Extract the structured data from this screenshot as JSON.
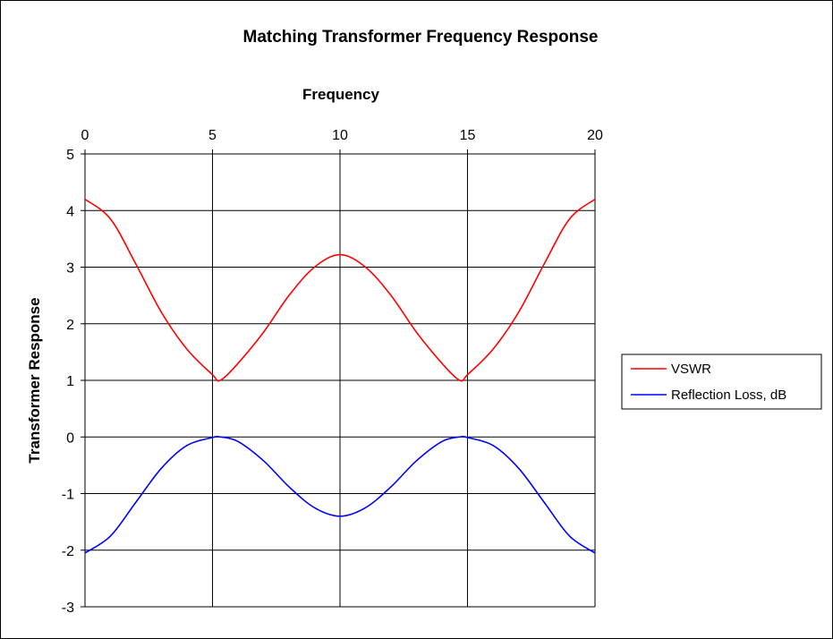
{
  "chart_data": {
    "type": "line",
    "title": "Matching Transformer Frequency Response",
    "xlabel": "Frequency",
    "ylabel": "Transformer  Response",
    "xlim": [
      0,
      20
    ],
    "ylim": [
      -3,
      5
    ],
    "x_ticks": [
      "0",
      "5",
      "10",
      "15",
      "20"
    ],
    "y_ticks": [
      "5",
      "4",
      "3",
      "2",
      "1",
      "0",
      "-1",
      "-2",
      "-3"
    ],
    "x_axis_position": "top",
    "grid": true,
    "legend_position": "right",
    "series": [
      {
        "name": "VSWR",
        "color": "#ff0000",
        "x": [
          0,
          1,
          2,
          3,
          4,
          5,
          5.3,
          6,
          7,
          8,
          9,
          10,
          11,
          12,
          13,
          14,
          14.7,
          15,
          16,
          17,
          18,
          19,
          20
        ],
        "y": [
          4.2,
          3.85,
          3.05,
          2.2,
          1.55,
          1.1,
          1.0,
          1.3,
          1.85,
          2.5,
          3.0,
          3.22,
          3.0,
          2.5,
          1.85,
          1.3,
          1.0,
          1.1,
          1.55,
          2.2,
          3.05,
          3.85,
          4.2
        ]
      },
      {
        "name": "Reflection Loss, dB",
        "color": "#0000ff",
        "x": [
          0,
          1,
          2,
          3,
          4,
          5,
          5.3,
          6,
          7,
          8,
          9,
          10,
          11,
          12,
          13,
          14,
          14.7,
          15,
          16,
          17,
          18,
          19,
          20
        ],
        "y": [
          -2.05,
          -1.75,
          -1.15,
          -0.55,
          -0.15,
          -0.01,
          0.0,
          -0.08,
          -0.42,
          -0.88,
          -1.25,
          -1.4,
          -1.25,
          -0.88,
          -0.42,
          -0.08,
          0.0,
          -0.01,
          -0.15,
          -0.55,
          -1.15,
          -1.75,
          -2.05
        ]
      }
    ]
  }
}
